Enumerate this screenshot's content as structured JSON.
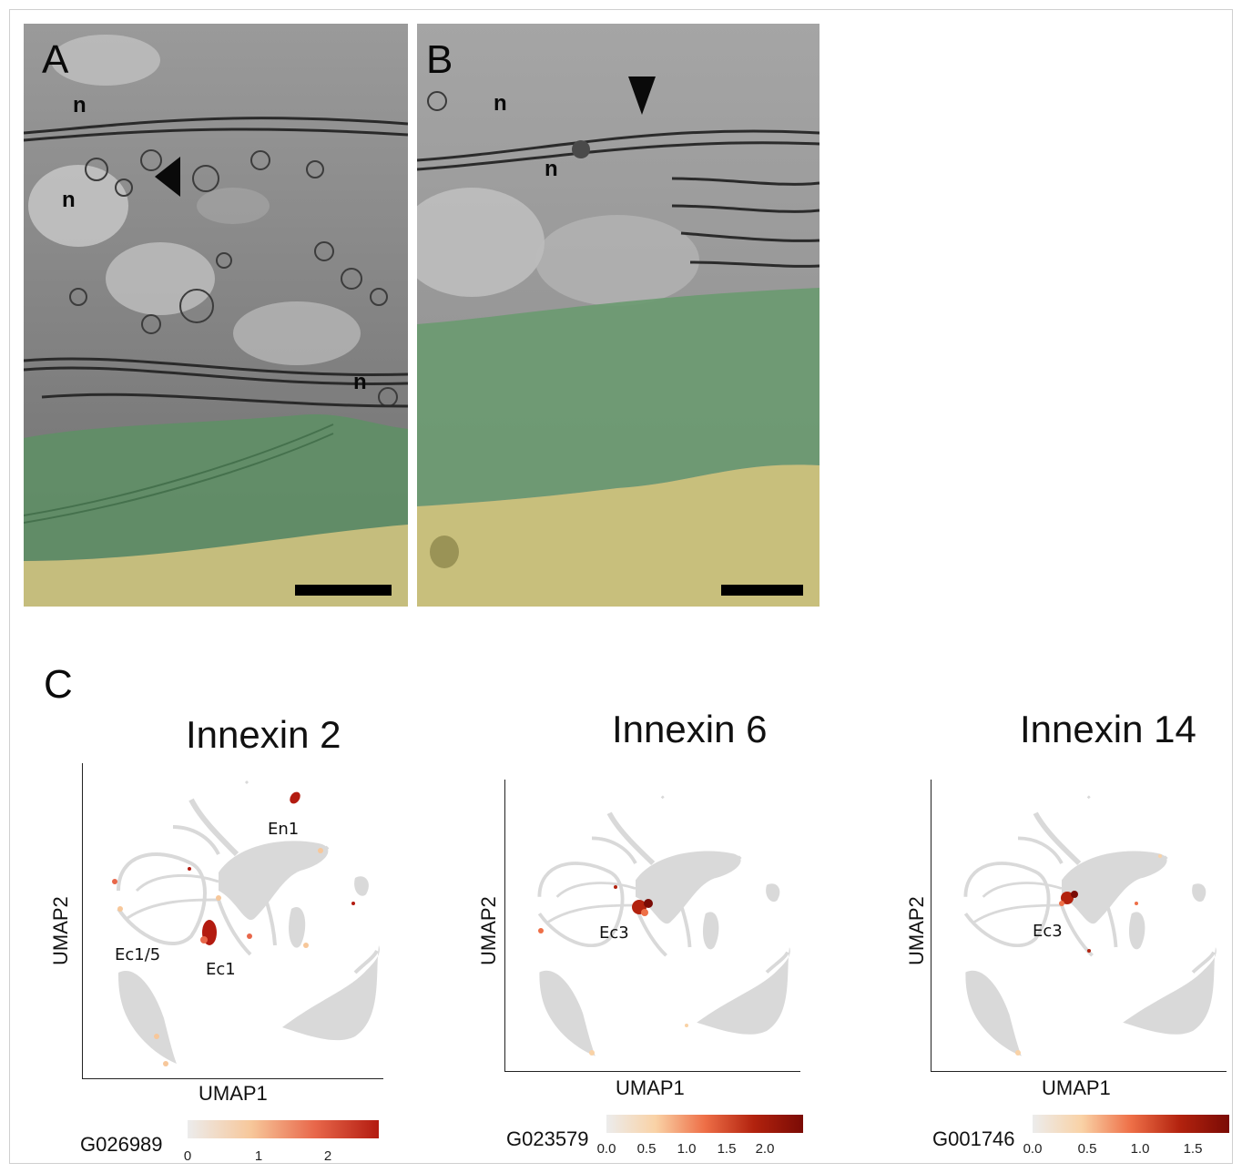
{
  "panels": {
    "A": {
      "letter": "A",
      "labels": [
        "n",
        "n",
        "n"
      ]
    },
    "B": {
      "letter": "B",
      "labels": [
        "n",
        "n"
      ]
    },
    "C": {
      "letter": "C"
    }
  },
  "umaps": [
    {
      "title": "Innexin 2",
      "xlabel": "UMAP1",
      "ylabel": "UMAP2",
      "gene": "G026989",
      "ticks": [
        "0",
        "1",
        "2"
      ],
      "cluster_labels": [
        "En1",
        "Ec1/5",
        "Ec1"
      ],
      "colors": [
        "#ececec",
        "#f7c79a",
        "#e8674a",
        "#b31b10"
      ]
    },
    {
      "title": "Innexin 6",
      "xlabel": "UMAP1",
      "ylabel": "UMAP2",
      "gene": "G023579",
      "ticks": [
        "0.0",
        "0.5",
        "1.0",
        "1.5",
        "2.0"
      ],
      "cluster_labels": [
        "Ec3"
      ],
      "colors": [
        "#ececec",
        "#f9d2a6",
        "#ee6f47",
        "#b2220e",
        "#7a0b05"
      ]
    },
    {
      "title": "Innexin 14",
      "xlabel": "UMAP1",
      "ylabel": "UMAP2",
      "gene": "G001746",
      "ticks": [
        "0.0",
        "0.5",
        "1.0",
        "1.5"
      ],
      "cluster_labels": [
        "Ec3"
      ],
      "colors": [
        "#ececec",
        "#f9d2a6",
        "#ee6f47",
        "#b2220e",
        "#7a0b05"
      ]
    }
  ],
  "styles": {
    "em_gray": "#8c8c8c",
    "em_green": "#6f9a73",
    "em_yellow": "#c8bf7a",
    "umap_gray": "#d9d9d9",
    "text": "#111111"
  }
}
